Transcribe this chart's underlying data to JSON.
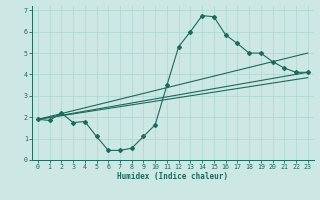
{
  "title": "",
  "xlabel": "Humidex (Indice chaleur)",
  "ylabel": "",
  "xlim": [
    -0.5,
    23.5
  ],
  "ylim": [
    0,
    7.2
  ],
  "xticks": [
    0,
    1,
    2,
    3,
    4,
    5,
    6,
    7,
    8,
    9,
    10,
    11,
    12,
    13,
    14,
    15,
    16,
    17,
    18,
    19,
    20,
    21,
    22,
    23
  ],
  "yticks": [
    0,
    1,
    2,
    3,
    4,
    5,
    6,
    7
  ],
  "bg_color": "#cde8e4",
  "line_color": "#1a6b5a",
  "curve_x": [
    0,
    1,
    2,
    3,
    4,
    5,
    6,
    7,
    8,
    9,
    10,
    11,
    12,
    13,
    14,
    15,
    16,
    17,
    18,
    19,
    20,
    21,
    22,
    23
  ],
  "curve_y": [
    1.9,
    1.85,
    2.2,
    1.75,
    1.8,
    1.1,
    0.45,
    0.45,
    0.55,
    1.1,
    1.65,
    3.5,
    5.3,
    6.0,
    6.75,
    6.7,
    5.85,
    5.45,
    5.0,
    5.0,
    4.6,
    4.3,
    4.1,
    4.1
  ],
  "line1_x": [
    0,
    23
  ],
  "line1_y": [
    1.9,
    4.1
  ],
  "line2_x": [
    0,
    23
  ],
  "line2_y": [
    1.9,
    3.85
  ],
  "line3_x": [
    0,
    23
  ],
  "line3_y": [
    1.9,
    5.0
  ]
}
